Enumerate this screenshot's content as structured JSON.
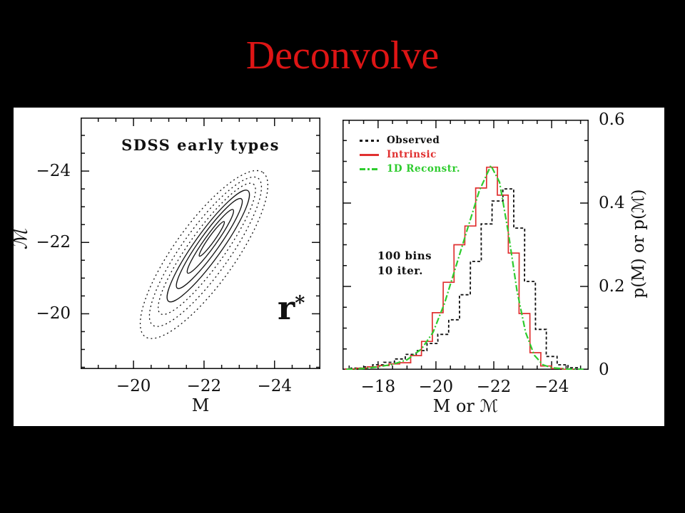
{
  "slide": {
    "title": "Deconvolve",
    "title_color": "#dd1515",
    "background": "#000000",
    "figure_background": "#ffffff",
    "axis_color": "#111111"
  },
  "chart_data": [
    {
      "type": "contour",
      "title": "SDSS early types",
      "xlabel": "M",
      "ylabel": "ℳ",
      "band_label": "r",
      "band_label_superscript": "*",
      "xlim": [
        -18.5,
        -25.3
      ],
      "ylim": [
        -18.45,
        -25.5
      ],
      "xticks": [
        -20,
        -22,
        -24
      ],
      "yticks": [
        -24,
        -22,
        -20
      ],
      "x_minor_step": 0.5,
      "y_minor_step": 0.5,
      "grid": false,
      "angle_deg": 54.4,
      "line_color": "#111111",
      "contours": [
        {
          "cx": -22.0,
          "cy": -21.66,
          "a": 2.85,
          "b": 0.85,
          "style": "dotted"
        },
        {
          "cx": -22.04,
          "cy": -21.74,
          "a": 2.55,
          "b": 0.66,
          "style": "dotted"
        },
        {
          "cx": -22.08,
          "cy": -21.82,
          "a": 2.25,
          "b": 0.5,
          "style": "dotted"
        },
        {
          "cx": -22.12,
          "cy": -21.9,
          "a": 1.92,
          "b": 0.38,
          "style": "solid"
        },
        {
          "cx": -22.15,
          "cy": -21.97,
          "a": 1.55,
          "b": 0.27,
          "style": "solid"
        },
        {
          "cx": -22.18,
          "cy": -22.03,
          "a": 1.1,
          "b": 0.165,
          "style": "solid"
        },
        {
          "cx": -22.22,
          "cy": -22.1,
          "a": 0.6,
          "b": 0.085,
          "style": "solid"
        }
      ]
    },
    {
      "type": "histogram-overlay",
      "xlabel": "M or ℳ",
      "ylabel": "p(M) or p(ℳ)",
      "annotation": {
        "line1": "100 bins",
        "line2": "10 iter."
      },
      "xlim": [
        -16.77,
        -25.28
      ],
      "ylim": [
        0,
        0.6
      ],
      "xticks": [
        -18,
        -20,
        -22,
        -24
      ],
      "yticks": [
        0,
        0.2,
        0.4,
        0.6
      ],
      "ytick_labels": [
        "0",
        "0.2",
        "0.4",
        "0.6"
      ],
      "x_minor_step": 0.5,
      "y_minor_step": 0.05,
      "grid": false,
      "legend_position": "top-left",
      "legend": [
        {
          "label": "Observed",
          "color": "#111111",
          "pattern": "dashed"
        },
        {
          "label": "Intrinsic",
          "color": "#e03030",
          "pattern": "solid"
        },
        {
          "label": "1D Reconstr.",
          "color": "#2ecc2e",
          "pattern": "dash-dot"
        }
      ],
      "series": [
        {
          "name": "Observed",
          "type": "step",
          "color": "#111111",
          "dash": "4 3",
          "line_width": 1.8,
          "bin_width": 0.375,
          "bin_centers": [
            -17.25,
            -17.63,
            -18.0,
            -18.38,
            -18.75,
            -19.13,
            -19.5,
            -19.88,
            -20.25,
            -20.63,
            -21.0,
            -21.38,
            -21.75,
            -22.13,
            -22.5,
            -22.88,
            -23.25,
            -23.63,
            -24.0,
            -24.38,
            -24.75
          ],
          "values": [
            0.004,
            0.007,
            0.012,
            0.018,
            0.026,
            0.037,
            0.046,
            0.063,
            0.085,
            0.12,
            0.18,
            0.26,
            0.35,
            0.405,
            0.434,
            0.34,
            0.212,
            0.097,
            0.032,
            0.012,
            0.005
          ]
        },
        {
          "name": "Intrinsic",
          "type": "step",
          "color": "#e03030",
          "dash": "",
          "line_width": 1.7,
          "bin_width": 0.375,
          "bin_centers": [
            -17.06,
            -17.44,
            -17.81,
            -18.19,
            -18.56,
            -18.94,
            -19.31,
            -19.69,
            -20.06,
            -20.44,
            -20.81,
            -21.19,
            -21.56,
            -21.94,
            -22.31,
            -22.69,
            -23.06,
            -23.44,
            -23.81,
            -24.19,
            -24.56
          ],
          "values": [
            0.002,
            0.004,
            0.007,
            0.01,
            0.014,
            0.017,
            0.034,
            0.068,
            0.137,
            0.21,
            0.3,
            0.345,
            0.436,
            0.486,
            0.419,
            0.28,
            0.135,
            0.041,
            0.009,
            0.003,
            0.001
          ]
        },
        {
          "name": "1D Reconstr.",
          "type": "line",
          "color": "#2ecc2e",
          "dash": "9 3 2 3",
          "line_width": 2.2,
          "x": [
            -16.9,
            -17.5,
            -18.0,
            -18.5,
            -19.0,
            -19.5,
            -19.9,
            -20.3,
            -20.7,
            -21.1,
            -21.5,
            -21.9,
            -22.2,
            -22.5,
            -22.8,
            -23.1,
            -23.4,
            -23.7,
            -24.0,
            -24.5,
            -25.1
          ],
          "y": [
            0.001,
            0.003,
            0.007,
            0.013,
            0.024,
            0.05,
            0.09,
            0.16,
            0.25,
            0.34,
            0.43,
            0.49,
            0.45,
            0.33,
            0.19,
            0.09,
            0.035,
            0.012,
            0.005,
            0.002,
            0.001
          ]
        }
      ]
    }
  ]
}
